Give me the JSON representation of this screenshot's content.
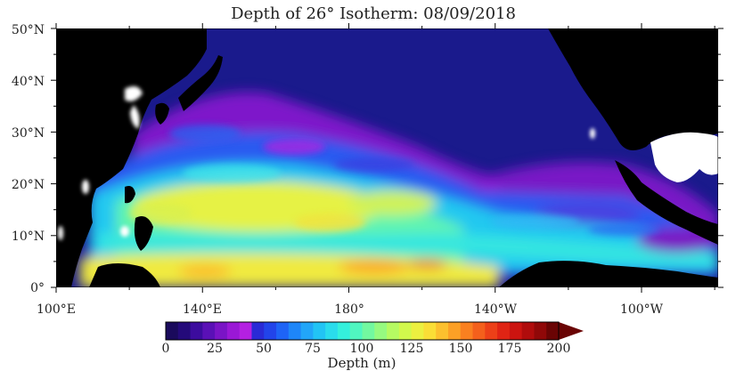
{
  "map": {
    "title": "Depth of 26° Isotherm: 08/09/2018",
    "lat_labels": [
      "50°N",
      "40°N",
      "30°N",
      "20°N",
      "10°N",
      "0°"
    ],
    "lon_labels": [
      "100°E",
      "140°E",
      "180°",
      "140°W",
      "100°W"
    ],
    "colorbar": {
      "ticks": [
        "0",
        "25",
        "50",
        "75",
        "100",
        "125",
        "150",
        "175",
        "200"
      ],
      "label": "Depth (m)",
      "min": 0,
      "max": 200,
      "step": 6.25
    }
  },
  "colors": {
    "ocean_base": "#1a1a8c",
    "land": "#000000",
    "coast_glow": "#ffffff",
    "scale": [
      "#1a0a5c",
      "#240a7a",
      "#3c0c9e",
      "#5a10b6",
      "#7a14c6",
      "#9a18d6",
      "#b420e2",
      "#2a2ad6",
      "#2244ea",
      "#1e64f6",
      "#1e86f8",
      "#22a6f8",
      "#22c4f4",
      "#2adcec",
      "#34f0dc",
      "#50f6c0",
      "#72f8a0",
      "#96fa80",
      "#b6fa62",
      "#d2f84c",
      "#ecf040",
      "#fade36",
      "#fcc02e",
      "#fca026",
      "#fa8020",
      "#f4601c",
      "#ec4018",
      "#e02414",
      "#cc1410",
      "#b00c0c",
      "#900808",
      "#6a0404"
    ]
  }
}
